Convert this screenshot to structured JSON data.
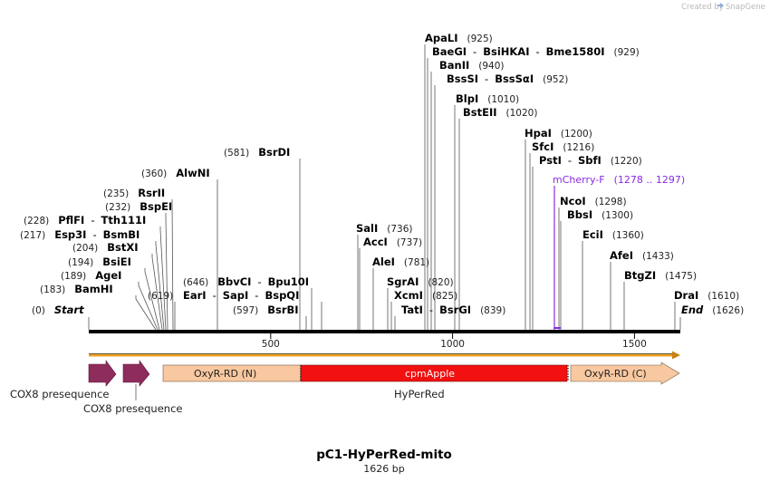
{
  "watermark": "Created by",
  "brand": "SnapGene",
  "title": "pC1-HyPerRed-mito",
  "subtitle": "1626 bp",
  "backbone": {
    "length": 1626,
    "ticks": [
      {
        "label": "500",
        "value": 500
      },
      {
        "label": "1000",
        "value": 1000
      },
      {
        "label": "1500",
        "value": 1500
      }
    ]
  },
  "labels": [
    {
      "parts": [
        {
          "t": "(0)",
          "k": "pos"
        },
        {
          "t": "Start",
          "k": "start"
        }
      ]
    },
    {
      "parts": [
        {
          "t": "(183)",
          "k": "pos"
        },
        {
          "t": "BamHI",
          "k": "enz"
        }
      ]
    },
    {
      "parts": [
        {
          "t": "(189)",
          "k": "pos"
        },
        {
          "t": "AgeI",
          "k": "enz"
        }
      ]
    },
    {
      "parts": [
        {
          "t": "(194)",
          "k": "pos"
        },
        {
          "t": "BsiEI",
          "k": "enz"
        }
      ]
    },
    {
      "parts": [
        {
          "t": "(204)",
          "k": "pos"
        },
        {
          "t": "BstXI",
          "k": "enz"
        }
      ]
    },
    {
      "parts": [
        {
          "t": "(217)",
          "k": "pos"
        },
        {
          "t": "Esp3I",
          "k": "enz"
        },
        {
          "t": "-",
          "k": "sep"
        },
        {
          "t": "BsmBI",
          "k": "enz"
        }
      ]
    },
    {
      "parts": [
        {
          "t": "(228)",
          "k": "pos"
        },
        {
          "t": "PflFI",
          "k": "enz"
        },
        {
          "t": "-",
          "k": "sep"
        },
        {
          "t": "Tth111I",
          "k": "enz"
        }
      ]
    },
    {
      "parts": [
        {
          "t": "(232)",
          "k": "pos"
        },
        {
          "t": "BspEI",
          "k": "enz"
        }
      ]
    },
    {
      "parts": [
        {
          "t": "(235)",
          "k": "pos"
        },
        {
          "t": "RsrII",
          "k": "enz"
        }
      ]
    },
    {
      "parts": [
        {
          "t": "(360)",
          "k": "pos"
        },
        {
          "t": "AlwNI",
          "k": "enz"
        }
      ]
    },
    {
      "parts": [
        {
          "t": "(581)",
          "k": "pos"
        },
        {
          "t": "BsrDI",
          "k": "enz"
        }
      ]
    },
    {
      "parts": [
        {
          "t": "(619)",
          "k": "pos"
        }
      ]
    },
    {
      "parts": [
        {
          "t": "(646)",
          "k": "pos"
        },
        {
          "t": "BbvCI",
          "k": "enz"
        },
        {
          "t": "-",
          "k": "sep"
        },
        {
          "t": "Bpu10I",
          "k": "enz"
        }
      ]
    },
    {
      "parts": [
        {
          "t": "EarI",
          "k": "enz"
        },
        {
          "t": "-",
          "k": "sep"
        },
        {
          "t": "SapI",
          "k": "enz"
        },
        {
          "t": "-",
          "k": "sep"
        },
        {
          "t": "BspQI",
          "k": "enz"
        }
      ]
    },
    {
      "parts": [
        {
          "t": "(597)",
          "k": "pos"
        },
        {
          "t": "BsrBI",
          "k": "enz"
        }
      ]
    },
    {
      "parts": [
        {
          "t": "SalI",
          "k": "enz"
        },
        {
          "t": "(736)",
          "k": "pos"
        }
      ]
    },
    {
      "parts": [
        {
          "t": "AccI",
          "k": "enz"
        },
        {
          "t": "(737)",
          "k": "pos"
        }
      ]
    },
    {
      "parts": [
        {
          "t": "AleI",
          "k": "enz"
        },
        {
          "t": "(781)",
          "k": "pos"
        }
      ]
    },
    {
      "parts": [
        {
          "t": "SgrAI",
          "k": "enz"
        },
        {
          "t": "(820)",
          "k": "pos"
        }
      ]
    },
    {
      "parts": [
        {
          "t": "XcmI",
          "k": "enz"
        },
        {
          "t": "(825)",
          "k": "pos"
        }
      ]
    },
    {
      "parts": [
        {
          "t": "TatI",
          "k": "enz"
        },
        {
          "t": "-",
          "k": "sep"
        },
        {
          "t": "BsrGI",
          "k": "enz"
        },
        {
          "t": "(839)",
          "k": "pos"
        }
      ]
    },
    {
      "parts": [
        {
          "t": "ApaLI",
          "k": "enz"
        },
        {
          "t": "(925)",
          "k": "pos"
        }
      ]
    },
    {
      "parts": [
        {
          "t": "BaeGI",
          "k": "enz"
        },
        {
          "t": "-",
          "k": "sep"
        },
        {
          "t": "BsiHKAI",
          "k": "enz"
        },
        {
          "t": "-",
          "k": "sep"
        },
        {
          "t": "Bme1580I",
          "k": "enz"
        },
        {
          "t": "(929)",
          "k": "pos"
        }
      ]
    },
    {
      "parts": [
        {
          "t": "BanII",
          "k": "enz"
        },
        {
          "t": "(940)",
          "k": "pos"
        }
      ]
    },
    {
      "parts": [
        {
          "t": "BssSI",
          "k": "enz"
        },
        {
          "t": "-",
          "k": "sep"
        },
        {
          "t": "BssSαI",
          "k": "enz"
        },
        {
          "t": "(952)",
          "k": "pos"
        }
      ]
    },
    {
      "parts": [
        {
          "t": "BlpI",
          "k": "enz"
        },
        {
          "t": "(1010)",
          "k": "pos"
        }
      ]
    },
    {
      "parts": [
        {
          "t": "BstEII",
          "k": "enz"
        },
        {
          "t": "(1020)",
          "k": "pos"
        }
      ]
    },
    {
      "parts": [
        {
          "t": "HpaI",
          "k": "enz"
        },
        {
          "t": "(1200)",
          "k": "pos"
        }
      ]
    },
    {
      "parts": [
        {
          "t": "SfcI",
          "k": "enz"
        },
        {
          "t": "(1216)",
          "k": "pos"
        }
      ]
    },
    {
      "parts": [
        {
          "t": "PstI",
          "k": "enz"
        },
        {
          "t": "-",
          "k": "sep"
        },
        {
          "t": "SbfI",
          "k": "enz"
        },
        {
          "t": "(1220)",
          "k": "pos"
        }
      ]
    },
    {
      "parts": [
        {
          "t": "mCherry-F",
          "k": "primer"
        },
        {
          "t": "(1278 .. 1297)",
          "k": "primer"
        }
      ]
    },
    {
      "parts": [
        {
          "t": "NcoI",
          "k": "enz"
        },
        {
          "t": "(1298)",
          "k": "pos"
        }
      ]
    },
    {
      "parts": [
        {
          "t": "BbsI",
          "k": "enz"
        },
        {
          "t": "(1300)",
          "k": "pos"
        }
      ]
    },
    {
      "parts": [
        {
          "t": "EciI",
          "k": "enz"
        },
        {
          "t": "(1360)",
          "k": "pos"
        }
      ]
    },
    {
      "parts": [
        {
          "t": "AfeI",
          "k": "enz"
        },
        {
          "t": "(1433)",
          "k": "pos"
        }
      ]
    },
    {
      "parts": [
        {
          "t": "BtgZI",
          "k": "enz"
        },
        {
          "t": "(1475)",
          "k": "pos"
        }
      ]
    },
    {
      "parts": [
        {
          "t": "DraI",
          "k": "enz"
        },
        {
          "t": "(1610)",
          "k": "pos"
        }
      ]
    },
    {
      "parts": [
        {
          "t": "End",
          "k": "start"
        },
        {
          "t": "(1626)",
          "k": "pos"
        }
      ]
    }
  ],
  "features": {
    "orf": {
      "start": 1,
      "end": 1626,
      "color": "#f0a020"
    },
    "cox8": [
      {
        "label": "COX8 presequence",
        "start": 1,
        "end": 87,
        "color": "#8e2c5c"
      },
      {
        "label": "COX8 presequence",
        "start": 94,
        "end": 180,
        "color": "#8e2c5c"
      }
    ],
    "hyperred": {
      "label": "HyPerRed",
      "color_side": "#f8c8a0",
      "color_mid": "#f21010",
      "segments": [
        {
          "label": "OxyR-RD (N)",
          "start": 204,
          "end": 582
        },
        {
          "label": "cpmApple",
          "start": 590,
          "end": 1328
        },
        {
          "label": "OxyR-RD (C)",
          "start": 1336,
          "end": 1626
        }
      ]
    },
    "primer_color": "#8a2be2"
  }
}
